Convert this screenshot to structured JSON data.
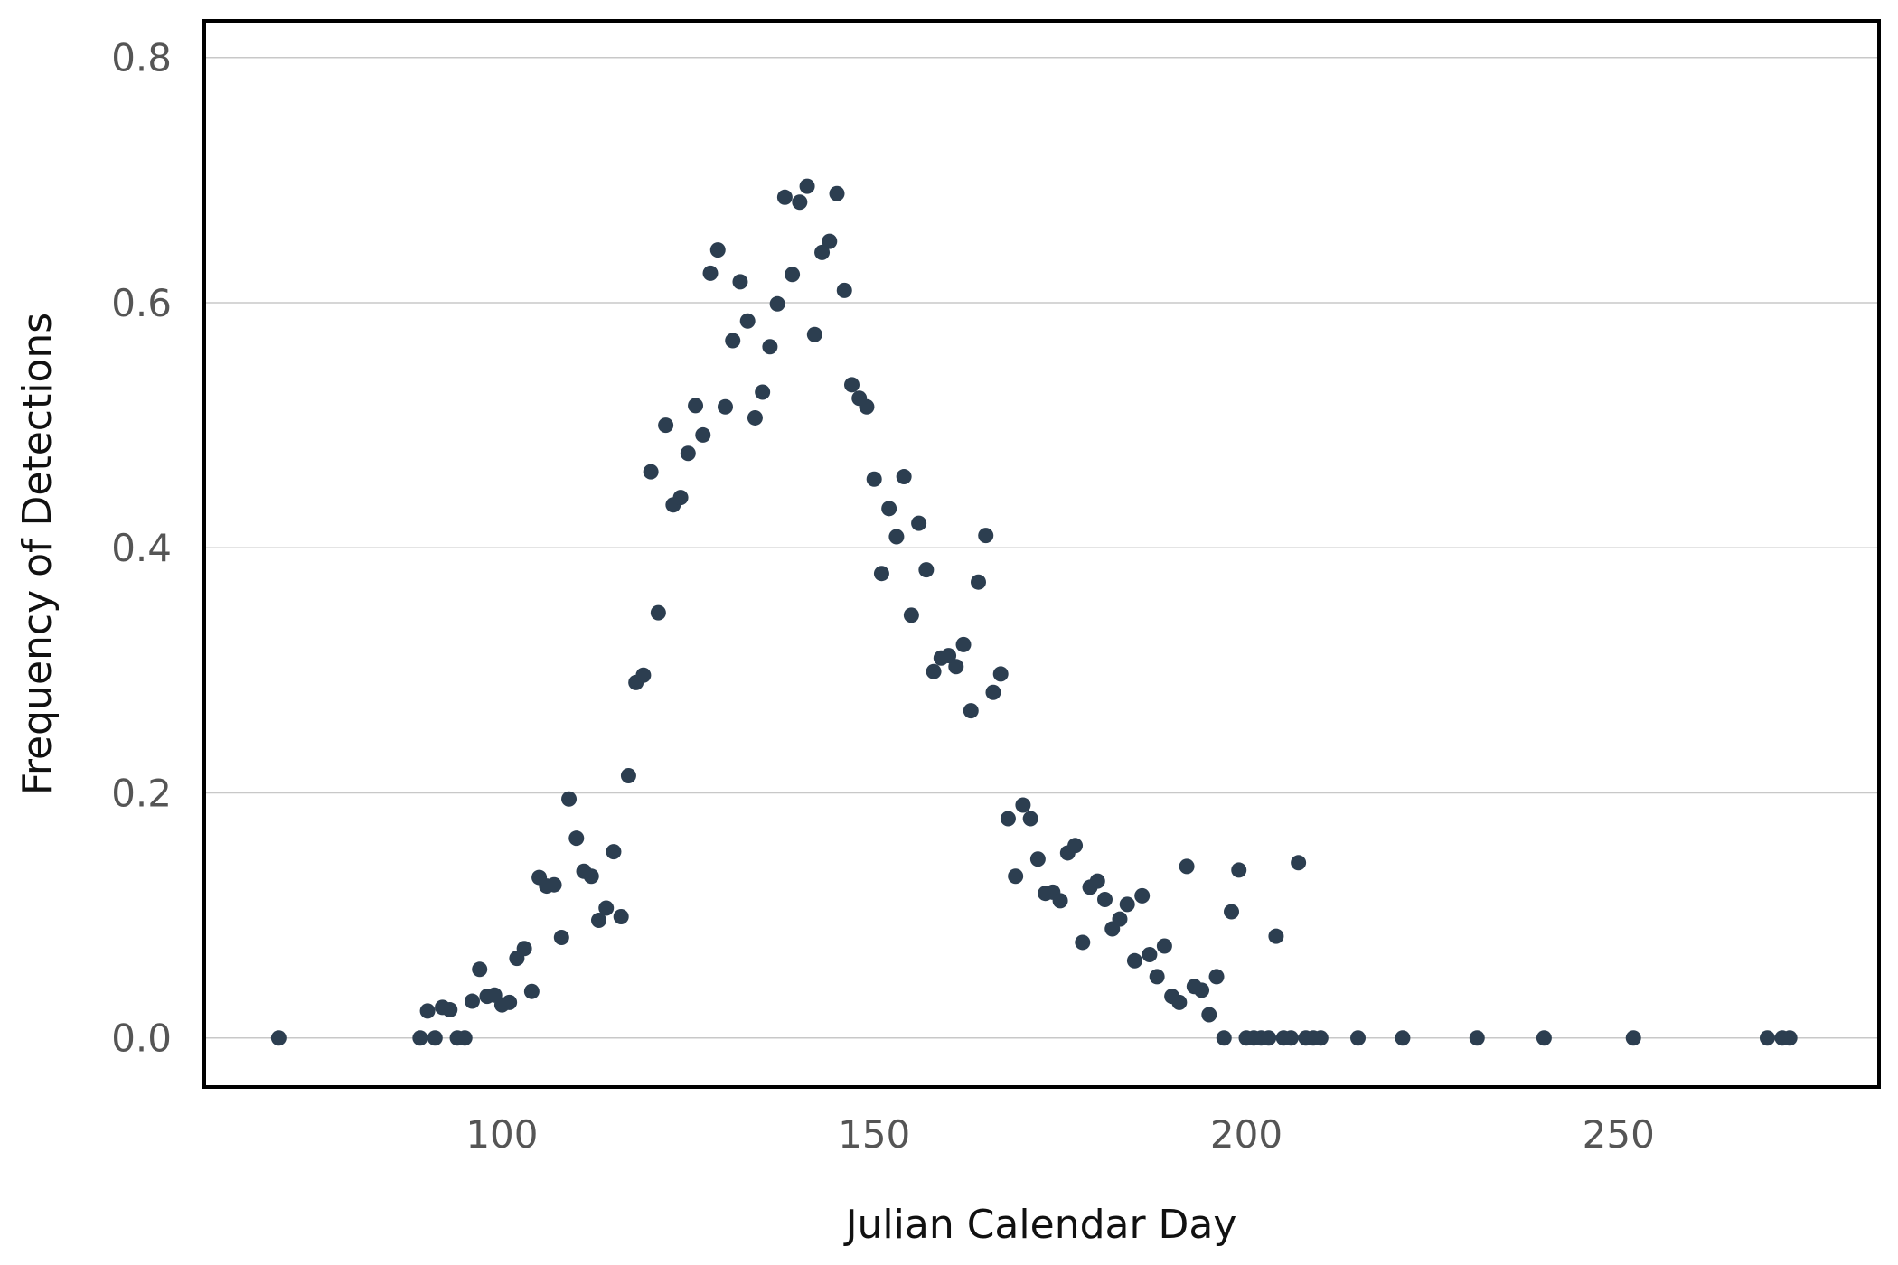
{
  "chart_data": {
    "type": "scatter",
    "title": "",
    "xlabel": "Julian Calendar Day",
    "ylabel": "Frequency of Detections",
    "xlim": [
      60,
      285
    ],
    "ylim": [
      -0.04,
      0.83
    ],
    "xticks": [
      100,
      150,
      200,
      250
    ],
    "yticks": [
      0.0,
      0.2,
      0.4,
      0.6,
      0.8
    ],
    "xtick_labels": [
      "100",
      "150",
      "200",
      "250"
    ],
    "ytick_labels": [
      "0.0",
      "0.2",
      "0.4",
      "0.6",
      "0.8"
    ],
    "grid": "horizontal",
    "legend": "none",
    "point_color": "#2c3e50",
    "points": [
      [
        70,
        0.0
      ],
      [
        89,
        0.0
      ],
      [
        90,
        0.022
      ],
      [
        91,
        0.0
      ],
      [
        92,
        0.025
      ],
      [
        93,
        0.023
      ],
      [
        94,
        0.0
      ],
      [
        95,
        0.0
      ],
      [
        96,
        0.03
      ],
      [
        97,
        0.056
      ],
      [
        98,
        0.034
      ],
      [
        99,
        0.035
      ],
      [
        100,
        0.027
      ],
      [
        101,
        0.029
      ],
      [
        102,
        0.065
      ],
      [
        103,
        0.073
      ],
      [
        104,
        0.038
      ],
      [
        105,
        0.131
      ],
      [
        106,
        0.124
      ],
      [
        107,
        0.125
      ],
      [
        108,
        0.082
      ],
      [
        109,
        0.195
      ],
      [
        110,
        0.163
      ],
      [
        111,
        0.136
      ],
      [
        112,
        0.132
      ],
      [
        113,
        0.096
      ],
      [
        114,
        0.106
      ],
      [
        115,
        0.152
      ],
      [
        116,
        0.099
      ],
      [
        117,
        0.214
      ],
      [
        118,
        0.29
      ],
      [
        119,
        0.296
      ],
      [
        120,
        0.462
      ],
      [
        121,
        0.347
      ],
      [
        122,
        0.5
      ],
      [
        123,
        0.435
      ],
      [
        124,
        0.441
      ],
      [
        125,
        0.477
      ],
      [
        126,
        0.516
      ],
      [
        127,
        0.492
      ],
      [
        128,
        0.624
      ],
      [
        129,
        0.643
      ],
      [
        130,
        0.515
      ],
      [
        131,
        0.569
      ],
      [
        132,
        0.617
      ],
      [
        133,
        0.585
      ],
      [
        134,
        0.506
      ],
      [
        135,
        0.527
      ],
      [
        136,
        0.564
      ],
      [
        137,
        0.599
      ],
      [
        138,
        0.686
      ],
      [
        139,
        0.623
      ],
      [
        140,
        0.682
      ],
      [
        141,
        0.695
      ],
      [
        142,
        0.574
      ],
      [
        143,
        0.641
      ],
      [
        144,
        0.65
      ],
      [
        145,
        0.689
      ],
      [
        146,
        0.61
      ],
      [
        147,
        0.533
      ],
      [
        148,
        0.522
      ],
      [
        149,
        0.515
      ],
      [
        150,
        0.456
      ],
      [
        151,
        0.379
      ],
      [
        152,
        0.432
      ],
      [
        153,
        0.409
      ],
      [
        154,
        0.458
      ],
      [
        155,
        0.345
      ],
      [
        156,
        0.42
      ],
      [
        157,
        0.382
      ],
      [
        158,
        0.299
      ],
      [
        159,
        0.31
      ],
      [
        160,
        0.312
      ],
      [
        161,
        0.303
      ],
      [
        162,
        0.321
      ],
      [
        163,
        0.267
      ],
      [
        164,
        0.372
      ],
      [
        165,
        0.41
      ],
      [
        166,
        0.282
      ],
      [
        167,
        0.297
      ],
      [
        168,
        0.179
      ],
      [
        169,
        0.132
      ],
      [
        170,
        0.19
      ],
      [
        171,
        0.179
      ],
      [
        172,
        0.146
      ],
      [
        173,
        0.118
      ],
      [
        174,
        0.119
      ],
      [
        175,
        0.112
      ],
      [
        176,
        0.151
      ],
      [
        177,
        0.157
      ],
      [
        178,
        0.078
      ],
      [
        179,
        0.123
      ],
      [
        180,
        0.128
      ],
      [
        181,
        0.113
      ],
      [
        182,
        0.089
      ],
      [
        183,
        0.097
      ],
      [
        184,
        0.109
      ],
      [
        185,
        0.063
      ],
      [
        186,
        0.116
      ],
      [
        187,
        0.068
      ],
      [
        188,
        0.05
      ],
      [
        189,
        0.075
      ],
      [
        190,
        0.034
      ],
      [
        191,
        0.029
      ],
      [
        192,
        0.14
      ],
      [
        193,
        0.042
      ],
      [
        194,
        0.039
      ],
      [
        195,
        0.019
      ],
      [
        196,
        0.05
      ],
      [
        197,
        0.0
      ],
      [
        198,
        0.103
      ],
      [
        199,
        0.137
      ],
      [
        200,
        0.0
      ],
      [
        201,
        0.0
      ],
      [
        202,
        0.0
      ],
      [
        203,
        0.0
      ],
      [
        204,
        0.083
      ],
      [
        205,
        0.0
      ],
      [
        206,
        0.0
      ],
      [
        207,
        0.143
      ],
      [
        208,
        0.0
      ],
      [
        209,
        0.0
      ],
      [
        210,
        0.0
      ],
      [
        215,
        0.0
      ],
      [
        221,
        0.0
      ],
      [
        231,
        0.0
      ],
      [
        240,
        0.0
      ],
      [
        252,
        0.0
      ],
      [
        270,
        0.0
      ],
      [
        272,
        0.0
      ],
      [
        273,
        0.0
      ]
    ]
  }
}
